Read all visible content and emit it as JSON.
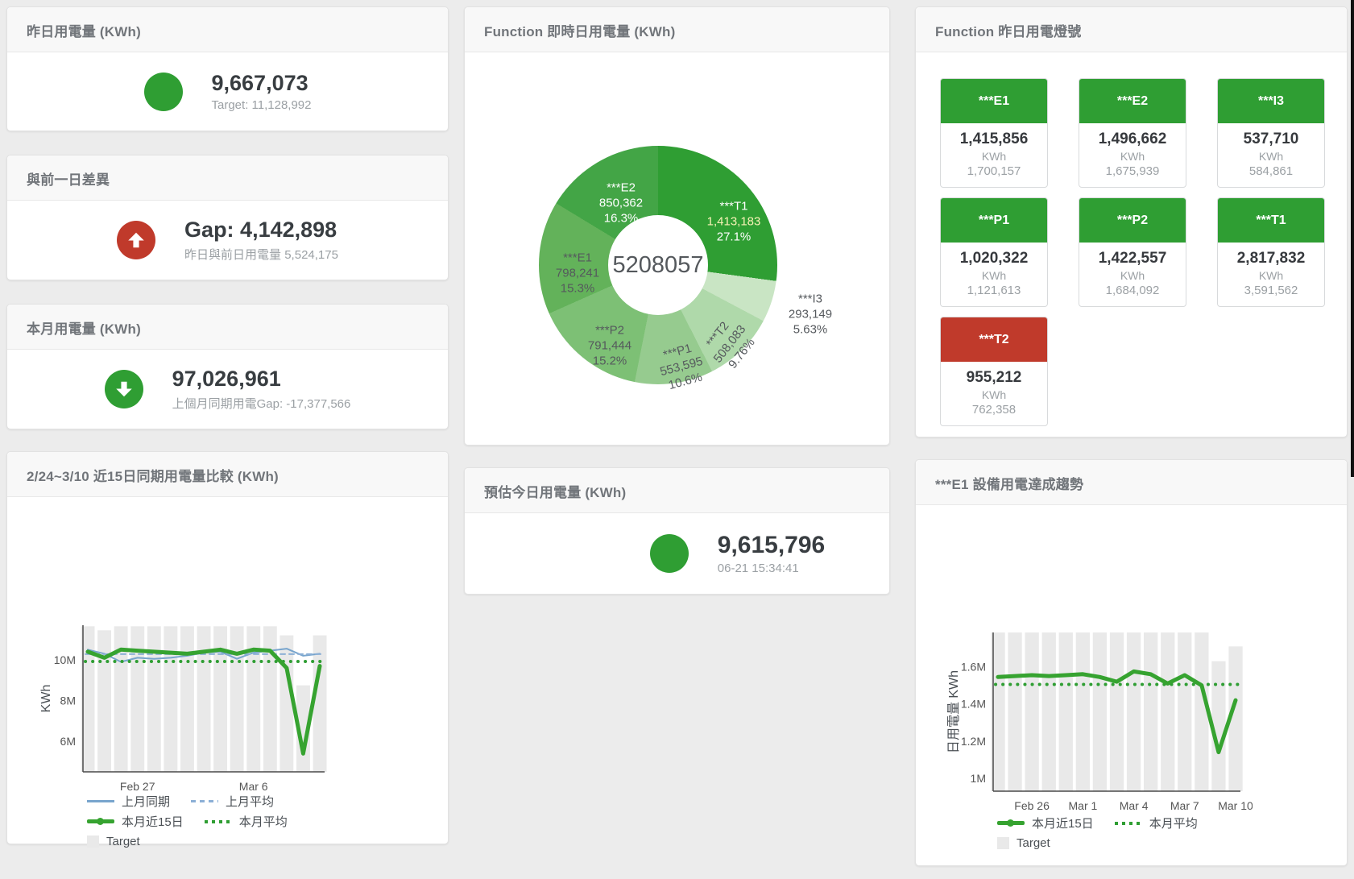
{
  "cards": {
    "yesterday": {
      "title": "昨日用電量 (KWh)",
      "value": "9,667,073",
      "subtitle": "Target: 11,128,992",
      "icon_color": "#2f9e33"
    },
    "gap": {
      "title": "與前一日差異",
      "value": "Gap: 4,142,898",
      "subtitle": "昨日與前日用電量 5,524,175",
      "icon_color": "#c03a2b"
    },
    "month": {
      "title": "本月用電量 (KWh)",
      "value": "97,026,961",
      "subtitle": "上個月同期用電Gap: -17,377,566",
      "icon_color": "#2f9e33"
    },
    "estimate": {
      "title": "預估今日用電量 (KWh)",
      "value": "9,615,796",
      "subtitle": "06-21 15:34:41",
      "icon_color": "#2f9e33"
    },
    "donut": {
      "title": "Function 即時日用電量 (KWh)"
    },
    "lights": {
      "title": "Function 昨日用電燈號",
      "tiles": [
        {
          "label": "***E1",
          "value": "1,415,856",
          "unit": "KWh",
          "target": "1,700,157",
          "status_color": "#2f9e33"
        },
        {
          "label": "***E2",
          "value": "1,496,662",
          "unit": "KWh",
          "target": "1,675,939",
          "status_color": "#2f9e33"
        },
        {
          "label": "***I3",
          "value": "537,710",
          "unit": "KWh",
          "target": "584,861",
          "status_color": "#2f9e33"
        },
        {
          "label": "***P1",
          "value": "1,020,322",
          "unit": "KWh",
          "target": "1,121,613",
          "status_color": "#2f9e33"
        },
        {
          "label": "***P2",
          "value": "1,422,557",
          "unit": "KWh",
          "target": "1,684,092",
          "status_color": "#2f9e33"
        },
        {
          "label": "***T1",
          "value": "2,817,832",
          "unit": "KWh",
          "target": "3,591,562",
          "status_color": "#2f9e33"
        },
        {
          "label": "***T2",
          "value": "955,212",
          "unit": "KWh",
          "target": "762,358",
          "status_color": "#c03a2b"
        }
      ]
    },
    "compare": {
      "title": "2/24~3/10 近15日同期用電量比較 (KWh)"
    },
    "trend": {
      "title": "***E1 設備用電達成趨勢"
    }
  },
  "chart_data": [
    {
      "type": "pie",
      "title": "Function 即時日用電量 (KWh)",
      "center_label": "5208057",
      "slices": [
        {
          "name": "***T1",
          "value": 1413183,
          "value_label": "1,413,183",
          "pct_label": "27.1%",
          "color": "#2f9e33"
        },
        {
          "name": "***I3",
          "value": 293149,
          "value_label": "293,149",
          "pct_label": "5.63%",
          "color": "#c9e5c4"
        },
        {
          "name": "***T2",
          "value": 508083,
          "value_label": "508,083",
          "pct_label": "9.76%",
          "color": "#afd9aa"
        },
        {
          "name": "***P1",
          "value": 553595,
          "value_label": "553,595",
          "pct_label": "10.6%",
          "color": "#96cb8f"
        },
        {
          "name": "***P2",
          "value": 791444,
          "value_label": "791,444",
          "pct_label": "15.2%",
          "color": "#7dc075"
        },
        {
          "name": "***E1",
          "value": 798241,
          "value_label": "798,241",
          "pct_label": "15.3%",
          "color": "#63b25a"
        },
        {
          "name": "***E2",
          "value": 850362,
          "value_label": "850,362",
          "pct_label": "16.3%",
          "color": "#43a546"
        }
      ]
    },
    {
      "type": "line",
      "id": "compare",
      "title": "2/24~3/10 近15日同期用電量比較 (KWh)",
      "ylabel": "KWh",
      "categories": [
        "Feb 24",
        "Feb 25",
        "Feb 26",
        "Feb 27",
        "Feb 28",
        "Mar 1",
        "Mar 2",
        "Mar 3",
        "Mar 4",
        "Mar 5",
        "Mar 6",
        "Mar 7",
        "Mar 8",
        "Mar 9",
        "Mar 10"
      ],
      "unit": "M KWh",
      "ylim": [
        4.5,
        11.7
      ],
      "yticks": [
        {
          "v": 6,
          "label": "6M"
        },
        {
          "v": 8,
          "label": "8M"
        },
        {
          "v": 10,
          "label": "10M"
        }
      ],
      "xticks": [
        {
          "i": 3,
          "label": "Feb 27"
        },
        {
          "i": 10,
          "label": "Mar 6"
        }
      ],
      "bars": {
        "name": "Target",
        "color": "#e9e9e9",
        "values": [
          11.65,
          11.45,
          11.65,
          11.65,
          11.65,
          11.65,
          11.65,
          11.65,
          11.65,
          11.65,
          11.65,
          11.65,
          11.2,
          8.75,
          11.2
        ]
      },
      "lines": [
        {
          "name": "上月同期",
          "color": "#78a5cd",
          "width": 2,
          "dash": "",
          "values": [
            10.5,
            10.3,
            9.9,
            10.1,
            10.05,
            10.1,
            10.2,
            10.35,
            10.4,
            10.05,
            10.35,
            10.45,
            10.55,
            10.2,
            10.3
          ]
        },
        {
          "name": "上月平均",
          "color": "#8cb0d6",
          "width": 2,
          "dash": "6 5",
          "const": 10.28
        },
        {
          "name": "本月平均",
          "color": "#2f9e33",
          "width": 4,
          "dash": "0.1 9",
          "const": 9.92
        },
        {
          "name": "本月近15日",
          "color": "#36a330",
          "width": 5,
          "dash": "",
          "values": [
            10.4,
            10.1,
            10.5,
            10.45,
            10.4,
            10.35,
            10.3,
            10.4,
            10.5,
            10.3,
            10.5,
            10.45,
            9.6,
            5.4,
            9.7
          ]
        }
      ],
      "legend": [
        [
          {
            "label": "上月同期",
            "swatch": "solid",
            "color": "#78a5cd"
          },
          {
            "label": "上月平均",
            "swatch": "dashed",
            "color": "#8cb0d6"
          }
        ],
        [
          {
            "label": "本月近15日",
            "swatch": "thick",
            "color": "#36a330"
          },
          {
            "label": "本月平均",
            "swatch": "dots",
            "color": "#2f9e33"
          }
        ],
        [
          {
            "label": "Target",
            "swatch": "square",
            "color": "#e9e9e9"
          }
        ]
      ]
    },
    {
      "type": "line",
      "id": "trend",
      "title": "***E1 設備用電達成趨勢",
      "ylabel": "日用電量 KWh",
      "categories": [
        "Feb 24",
        "Feb 25",
        "Feb 26",
        "Feb 27",
        "Feb 28",
        "Mar 1",
        "Mar 2",
        "Mar 3",
        "Mar 4",
        "Mar 5",
        "Mar 6",
        "Mar 7",
        "Mar 8",
        "Mar 9",
        "Mar 10"
      ],
      "unit": "M KWh",
      "ylim": [
        0.93,
        1.785
      ],
      "yticks": [
        {
          "v": 1,
          "label": "1M"
        },
        {
          "v": 1.2,
          "label": "1.2M"
        },
        {
          "v": 1.4,
          "label": "1.4M"
        },
        {
          "v": 1.6,
          "label": "1.6M"
        }
      ],
      "xticks": [
        {
          "i": 2,
          "label": "Feb 26"
        },
        {
          "i": 5,
          "label": "Mar 1"
        },
        {
          "i": 8,
          "label": "Mar 4"
        },
        {
          "i": 11,
          "label": "Mar 7"
        },
        {
          "i": 14,
          "label": "Mar 10"
        }
      ],
      "bars": {
        "name": "Target",
        "color": "#e9e9e9",
        "values": [
          1.785,
          1.785,
          1.785,
          1.785,
          1.785,
          1.785,
          1.785,
          1.785,
          1.785,
          1.785,
          1.785,
          1.785,
          1.785,
          1.63,
          1.71
        ]
      },
      "lines": [
        {
          "name": "本月平均",
          "color": "#2f9e33",
          "width": 4,
          "dash": "0.1 9",
          "const": 1.505
        },
        {
          "name": "本月近15日",
          "color": "#36a330",
          "width": 5,
          "dash": "",
          "values": [
            1.545,
            1.55,
            1.555,
            1.55,
            1.555,
            1.56,
            1.545,
            1.52,
            1.575,
            1.56,
            1.51,
            1.555,
            1.5,
            1.14,
            1.42
          ]
        }
      ],
      "legend": [
        [
          {
            "label": "本月近15日",
            "swatch": "thick",
            "color": "#36a330"
          },
          {
            "label": "本月平均",
            "swatch": "dots",
            "color": "#2f9e33"
          }
        ],
        [
          {
            "label": "Target",
            "swatch": "square",
            "color": "#e9e9e9"
          }
        ]
      ]
    }
  ]
}
